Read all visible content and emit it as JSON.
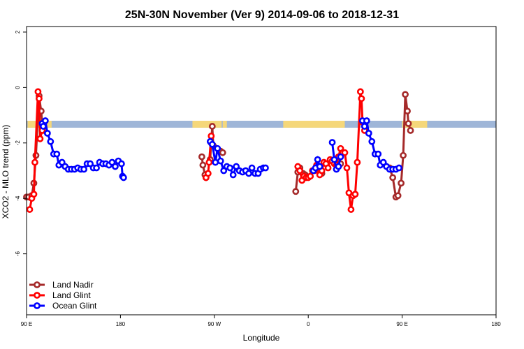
{
  "chart_data": {
    "type": "line",
    "title": "25N-30N November (Ver 9)   2014-09-06 to 2018-12-31",
    "xlabel": "Longitude",
    "ylabel": "XCO2 - MLO trend (ppm)",
    "xlim": [
      90,
      540
    ],
    "ylim": [
      -8.2,
      2.2
    ],
    "x_ticks": [
      {
        "value": 90,
        "label": "90 E"
      },
      {
        "value": 180,
        "label": "180"
      },
      {
        "value": 270,
        "label": "90 W"
      },
      {
        "value": 360,
        "label": "0"
      },
      {
        "value": 450,
        "label": "90 E"
      },
      {
        "value": 540,
        "label": "180"
      }
    ],
    "y_ticks": [
      {
        "value": 2,
        "label": "2"
      },
      {
        "value": 0,
        "label": "0"
      },
      {
        "value": -2,
        "label": "-2"
      },
      {
        "value": -4,
        "label": "-4"
      },
      {
        "value": -6,
        "label": "-6"
      }
    ],
    "land_ocean_band": {
      "y_range": [
        -1.45,
        -1.2
      ],
      "ocean_color": "#9fb6d8",
      "land_color": "#f5d77a",
      "land_segments": [
        [
          91,
          114
        ],
        [
          249,
          277
        ],
        [
          278,
          282
        ],
        [
          336,
          395
        ],
        [
          450,
          474
        ]
      ]
    },
    "legend": {
      "position": "bottom-left"
    },
    "series": [
      {
        "name": "Land Nadir",
        "color": "#a52a2a",
        "segments": [
          [
            [
              90,
              -3.95
            ],
            [
              92,
              -3.95
            ],
            [
              95,
              -3.9
            ],
            [
              97,
              -3.45
            ],
            [
              99,
              -2.45
            ],
            [
              102,
              -0.3
            ],
            [
              104,
              -0.85
            ],
            [
              105,
              -1.3
            ],
            [
              107,
              -1.55
            ]
          ],
          [
            [
              258,
              -2.5
            ],
            [
              259,
              -2.8
            ],
            [
              261,
              -3.15
            ],
            [
              262,
              -3.25
            ]
          ],
          [
            [
              266,
              -2.6
            ],
            [
              267,
              -2.0
            ],
            [
              268,
              -1.4
            ],
            [
              269,
              -2.1
            ]
          ],
          [
            [
              276,
              -2.3
            ],
            [
              278,
              -2.35
            ]
          ],
          [
            [
              348,
              -3.75
            ],
            [
              350,
              -3.05
            ],
            [
              352,
              -2.9
            ],
            [
              355,
              -3.1
            ],
            [
              357,
              -3.15
            ]
          ],
          [
            [
              370,
              -3.0
            ],
            [
              373,
              -3.1
            ]
          ],
          [
            [
              389,
              -2.8
            ],
            [
              391,
              -2.75
            ]
          ],
          [
            [
              438,
              -2.9
            ],
            [
              441,
              -3.25
            ],
            [
              444,
              -3.95
            ],
            [
              446,
              -3.9
            ],
            [
              449,
              -3.45
            ],
            [
              451,
              -2.45
            ],
            [
              453,
              -0.25
            ],
            [
              455,
              -0.85
            ],
            [
              456,
              -1.3
            ],
            [
              458,
              -1.55
            ]
          ]
        ]
      },
      {
        "name": "Land Glint",
        "color": "#ff0000",
        "segments": [
          [
            [
              93,
              -4.4
            ],
            [
              95,
              -4.0
            ],
            [
              97,
              -3.85
            ],
            [
              98,
              -2.7
            ],
            [
              101,
              -0.15
            ],
            [
              102,
              -0.4
            ],
            [
              103,
              -1.85
            ],
            [
              105,
              -1.55
            ]
          ],
          [
            [
              262,
              -3.25
            ],
            [
              264,
              -3.1
            ],
            [
              265,
              -2.7
            ],
            [
              267,
              -1.75
            ]
          ],
          [
            [
              350,
              -2.85
            ],
            [
              352,
              -3.0
            ],
            [
              354,
              -3.35
            ],
            [
              356,
              -3.2
            ],
            [
              358,
              -3.25
            ],
            [
              360,
              -3.25
            ],
            [
              362,
              -3.2
            ],
            [
              364,
              -3.0
            ],
            [
              366,
              -3.0
            ],
            [
              368,
              -2.8
            ],
            [
              371,
              -3.15
            ],
            [
              373,
              -3.0
            ],
            [
              375,
              -2.7
            ],
            [
              377,
              -2.75
            ],
            [
              379,
              -2.9
            ],
            [
              381,
              -2.6
            ],
            [
              383,
              -2.65
            ],
            [
              385,
              -2.75
            ],
            [
              387,
              -2.8
            ],
            [
              389,
              -2.5
            ],
            [
              391,
              -2.2
            ],
            [
              393,
              -2.35
            ],
            [
              395,
              -2.35
            ],
            [
              397,
              -2.9
            ],
            [
              399,
              -3.8
            ],
            [
              401,
              -4.4
            ],
            [
              403,
              -3.9
            ],
            [
              405,
              -3.85
            ],
            [
              407,
              -2.7
            ],
            [
              410,
              -0.15
            ],
            [
              411,
              -0.4
            ],
            [
              412,
              -1.25
            ],
            [
              414,
              -1.55
            ]
          ]
        ]
      },
      {
        "name": "Ocean Glint",
        "color": "#0000ff",
        "segments": [
          [
            [
              105,
              -1.3
            ],
            [
              106,
              -1.4
            ],
            [
              108,
              -1.2
            ],
            [
              110,
              -1.65
            ],
            [
              113,
              -1.95
            ],
            [
              116,
              -2.4
            ],
            [
              119,
              -2.4
            ],
            [
              121,
              -2.8
            ],
            [
              124,
              -2.7
            ],
            [
              127,
              -2.85
            ],
            [
              130,
              -2.95
            ],
            [
              133,
              -2.95
            ],
            [
              136,
              -2.95
            ],
            [
              139,
              -2.9
            ],
            [
              142,
              -2.95
            ],
            [
              145,
              -2.95
            ],
            [
              148,
              -2.75
            ],
            [
              151,
              -2.75
            ],
            [
              154,
              -2.9
            ],
            [
              157,
              -2.9
            ],
            [
              160,
              -2.7
            ],
            [
              163,
              -2.75
            ],
            [
              166,
              -2.75
            ],
            [
              169,
              -2.8
            ],
            [
              172,
              -2.7
            ],
            [
              175,
              -2.85
            ],
            [
              178,
              -2.65
            ],
            [
              181,
              -2.75
            ],
            [
              182,
              -3.2
            ],
            [
              183,
              -3.25
            ]
          ],
          [
            [
              266,
              -1.95
            ],
            [
              268,
              -2.05
            ],
            [
              271,
              -2.7
            ],
            [
              273,
              -2.2
            ],
            [
              276,
              -2.65
            ],
            [
              279,
              -3.0
            ],
            [
              282,
              -2.85
            ],
            [
              285,
              -2.9
            ],
            [
              288,
              -3.15
            ],
            [
              291,
              -2.85
            ],
            [
              294,
              -3.0
            ],
            [
              297,
              -3.05
            ],
            [
              300,
              -3.0
            ],
            [
              303,
              -3.1
            ],
            [
              306,
              -2.9
            ],
            [
              309,
              -3.1
            ],
            [
              312,
              -3.1
            ],
            [
              314,
              -2.95
            ],
            [
              317,
              -2.9
            ],
            [
              319,
              -2.9
            ]
          ],
          [
            [
              365,
              -3.0
            ],
            [
              367,
              -2.9
            ],
            [
              369,
              -2.6
            ],
            [
              371,
              -2.85
            ]
          ],
          [
            [
              383,
              -1.98
            ],
            [
              385,
              -2.6
            ],
            [
              387,
              -2.95
            ],
            [
              389,
              -2.85
            ],
            [
              391,
              -2.5
            ]
          ],
          [
            [
              412,
              -1.2
            ],
            [
              414,
              -1.4
            ],
            [
              416,
              -1.2
            ],
            [
              418,
              -1.65
            ],
            [
              421,
              -1.95
            ],
            [
              424,
              -2.4
            ],
            [
              427,
              -2.4
            ],
            [
              429,
              -2.8
            ],
            [
              432,
              -2.7
            ],
            [
              435,
              -2.85
            ],
            [
              438,
              -2.95
            ],
            [
              441,
              -2.95
            ],
            [
              444,
              -2.95
            ],
            [
              447,
              -2.9
            ]
          ]
        ]
      }
    ]
  }
}
